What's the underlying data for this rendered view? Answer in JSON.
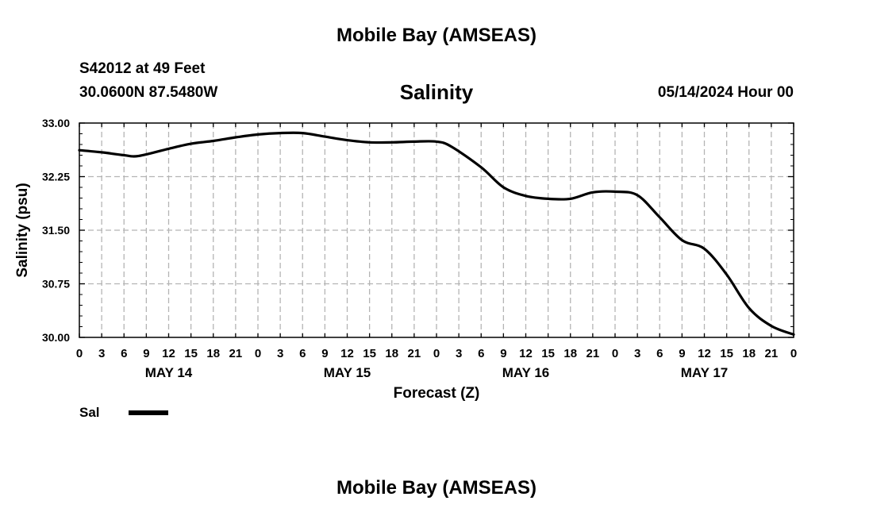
{
  "header": {
    "title": "Mobile Bay (AMSEAS)",
    "station": "S42012 at 49 Feet",
    "coordinates": "30.0600N  87.5480W",
    "chart_title": "Salinity",
    "datetime": "05/14/2024 Hour 00"
  },
  "legend": {
    "label": "Sal",
    "color": "#000000"
  },
  "footer": {
    "title": "Mobile Bay (AMSEAS)"
  },
  "chart_data": {
    "type": "line",
    "title": "Salinity",
    "xlabel": "Forecast (Z)",
    "ylabel": "Salinity (psu)",
    "xlim": [
      0,
      96
    ],
    "ylim": [
      30.0,
      33.0
    ],
    "grid": true,
    "yticks": [
      30.0,
      30.75,
      31.5,
      32.25,
      33.0
    ],
    "ytick_labels": [
      "30.00",
      "30.75",
      "31.50",
      "32.25",
      "33.00"
    ],
    "xtick_hours": [
      0,
      3,
      6,
      9,
      12,
      15,
      18,
      21,
      24,
      27,
      30,
      33,
      36,
      39,
      42,
      45,
      48,
      51,
      54,
      57,
      60,
      63,
      66,
      69,
      72,
      75,
      78,
      81,
      84,
      87,
      90,
      93,
      96
    ],
    "xtick_labels": [
      "0",
      "3",
      "6",
      "9",
      "12",
      "15",
      "18",
      "21",
      "0",
      "3",
      "6",
      "9",
      "12",
      "15",
      "18",
      "21",
      "0",
      "3",
      "6",
      "9",
      "12",
      "15",
      "18",
      "21",
      "0",
      "3",
      "6",
      "9",
      "12",
      "15",
      "18",
      "21",
      "0"
    ],
    "day_labels": [
      {
        "hour": 12,
        "label": "MAY 14"
      },
      {
        "hour": 36,
        "label": "MAY 15"
      },
      {
        "hour": 60,
        "label": "MAY 16"
      },
      {
        "hour": 84,
        "label": "MAY 17"
      }
    ],
    "series": [
      {
        "name": "Sal",
        "color": "#000000",
        "x": [
          0,
          3,
          6,
          8,
          12,
          15,
          18,
          21,
          24,
          27,
          30,
          33,
          36,
          39,
          42,
          45,
          48,
          50,
          54,
          57,
          60,
          63,
          66,
          69,
          72,
          75,
          78,
          81,
          84,
          87,
          90,
          93,
          96
        ],
        "y": [
          32.62,
          32.59,
          32.55,
          32.54,
          32.64,
          32.71,
          32.75,
          32.8,
          32.84,
          32.86,
          32.86,
          32.81,
          32.76,
          32.73,
          32.73,
          32.74,
          32.74,
          32.67,
          32.38,
          32.1,
          31.98,
          31.94,
          31.94,
          32.03,
          32.04,
          31.99,
          31.68,
          31.36,
          31.24,
          30.88,
          30.41,
          30.16,
          30.04
        ]
      }
    ]
  }
}
